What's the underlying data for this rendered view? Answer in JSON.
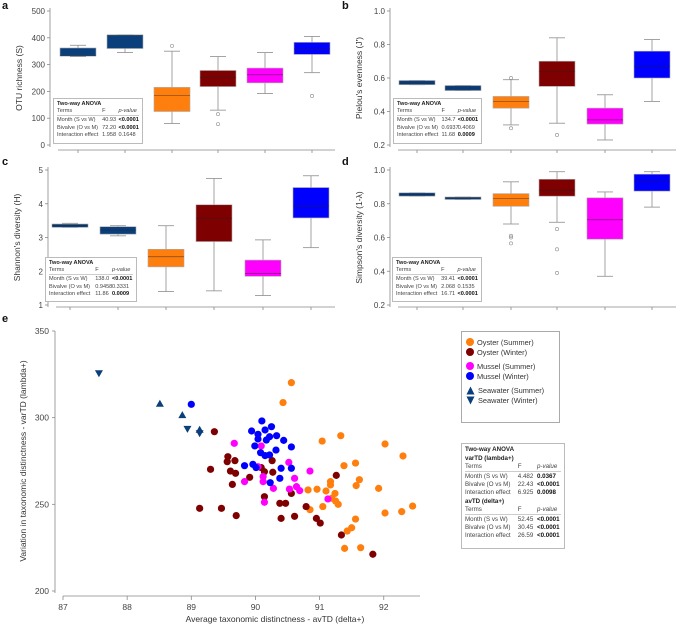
{
  "colors": {
    "seawater": "#0b3f7c",
    "oyster_summer": "#ff7f0e",
    "oyster_winter": "#7f0000",
    "mussel_summer": "#ff00ff",
    "mussel_winter": "#0000ff"
  },
  "chart_data": [
    {
      "panel": "a",
      "type": "box",
      "ylabel": "OTU richness (S)",
      "ylim": [
        0,
        500
      ],
      "yticks": [
        0,
        100,
        200,
        300,
        400,
        500
      ],
      "groups": [
        "Seawater (Summer)",
        "Seawater (Winter)",
        "Oyster (Summer)",
        "Oyster (Winter)",
        "Mussel (Summer)",
        "Mussel (Winter)"
      ],
      "boxes": [
        {
          "min": 330,
          "q1": 332,
          "median": 333,
          "q3": 362,
          "max": 372,
          "outliers": []
        },
        {
          "min": 345,
          "q1": 360,
          "median": 410,
          "q3": 410,
          "max": 410,
          "outliers": []
        },
        {
          "min": 80,
          "q1": 125,
          "median": 185,
          "q3": 215,
          "max": 350,
          "outliers": [
            370
          ]
        },
        {
          "min": 130,
          "q1": 218,
          "median": 252,
          "q3": 278,
          "max": 330,
          "outliers": [
            115,
            78
          ]
        },
        {
          "min": 192,
          "q1": 232,
          "median": 262,
          "q3": 287,
          "max": 345,
          "outliers": []
        },
        {
          "min": 270,
          "q1": 338,
          "median": 358,
          "q3": 383,
          "max": 405,
          "outliers": [
            183
          ]
        }
      ],
      "anova": {
        "title": "Two-way ANOVA",
        "header": [
          "Terms",
          "F",
          "p-value"
        ],
        "rows": [
          [
            "Month (S vs W)",
            "40.93",
            "<0.0001",
            true
          ],
          [
            "Bivalve (O vs M)",
            "72.20",
            "<0.0001",
            true
          ],
          [
            "Interaction effect",
            "1.958",
            "0.1648",
            false
          ]
        ]
      }
    },
    {
      "panel": "b",
      "type": "box",
      "ylabel": "Pielou's evenness (J')",
      "ylim": [
        0.2,
        1.0
      ],
      "yticks": [
        "0.2",
        "0.4",
        "0.6",
        "0.8",
        "1.0"
      ],
      "groups": [
        "Seawater (Summer)",
        "Seawater (Winter)",
        "Oyster (Summer)",
        "Oyster (Winter)",
        "Mussel (Summer)",
        "Mussel (Winter)"
      ],
      "boxes": [
        {
          "min": 0.56,
          "q1": 0.56,
          "median": 0.57,
          "q3": 0.585,
          "max": 0.585,
          "outliers": []
        },
        {
          "min": 0.525,
          "q1": 0.525,
          "median": 0.54,
          "q3": 0.555,
          "max": 0.555,
          "outliers": []
        },
        {
          "min": 0.32,
          "q1": 0.42,
          "median": 0.46,
          "q3": 0.49,
          "max": 0.59,
          "outliers": [
            0.3,
            0.6
          ]
        },
        {
          "min": 0.33,
          "q1": 0.55,
          "median": 0.64,
          "q3": 0.7,
          "max": 0.84,
          "outliers": [
            0.26
          ]
        },
        {
          "min": 0.23,
          "q1": 0.325,
          "median": 0.35,
          "q3": 0.42,
          "max": 0.5,
          "outliers": []
        },
        {
          "min": 0.46,
          "q1": 0.6,
          "median": 0.67,
          "q3": 0.76,
          "max": 0.83,
          "outliers": []
        }
      ],
      "anova": {
        "title": "Two-way ANOVA",
        "header": [
          "Terms",
          "F",
          "p-value"
        ],
        "rows": [
          [
            "Month (S vs W)",
            "134.7",
            "<0.0001",
            true
          ],
          [
            "Bivalve (O vs M)",
            "0.6937",
            "0.4069",
            false
          ],
          [
            "Interaction effect",
            "11.68",
            "0.0009",
            true
          ]
        ]
      }
    },
    {
      "panel": "c",
      "type": "box",
      "ylabel": "Shannon's diversity (H)",
      "ylim": [
        1,
        5
      ],
      "yticks": [
        "1",
        "2",
        "3",
        "4",
        "5"
      ],
      "groups": [
        "Seawater (Summer)",
        "Seawater (Winter)",
        "Oyster (Summer)",
        "Oyster (Winter)",
        "Mussel (Summer)",
        "Mussel (Winter)"
      ],
      "boxes": [
        {
          "min": 3.3,
          "q1": 3.3,
          "median": 3.36,
          "q3": 3.4,
          "max": 3.42,
          "outliers": []
        },
        {
          "min": 3.05,
          "q1": 3.1,
          "median": 3.22,
          "q3": 3.32,
          "max": 3.35,
          "outliers": []
        },
        {
          "min": 1.4,
          "q1": 2.13,
          "median": 2.43,
          "q3": 2.65,
          "max": 3.35,
          "outliers": []
        },
        {
          "min": 1.42,
          "q1": 2.88,
          "median": 3.57,
          "q3": 3.97,
          "max": 4.75,
          "outliers": []
        },
        {
          "min": 1.28,
          "q1": 1.85,
          "median": 1.93,
          "q3": 2.33,
          "max": 2.93,
          "outliers": []
        },
        {
          "min": 2.7,
          "q1": 3.58,
          "median": 3.93,
          "q3": 4.48,
          "max": 4.83,
          "outliers": []
        }
      ],
      "anova": {
        "title": "Two-way ANOVA",
        "header": [
          "Terms",
          "F",
          "p-value"
        ],
        "rows": [
          [
            "Month (S vs W)",
            "138.0",
            "<0.0001",
            true
          ],
          [
            "Bivalve (O vs M)",
            "0.9458",
            "0.3331",
            false
          ],
          [
            "Interaction effect",
            "11.86",
            "0.0009",
            true
          ]
        ]
      }
    },
    {
      "panel": "d",
      "type": "box",
      "ylabel": "Simpson's diversity (1-λ)",
      "ylim": [
        0.2,
        1.0
      ],
      "yticks": [
        "0.2",
        "0.4",
        "0.6",
        "0.8",
        "1.0"
      ],
      "groups": [
        "Seawater (Summer)",
        "Seawater (Winter)",
        "Oyster (Summer)",
        "Oyster (Winter)",
        "Mussel (Summer)",
        "Mussel (Winter)"
      ],
      "boxes": [
        {
          "min": 0.845,
          "q1": 0.845,
          "median": 0.855,
          "q3": 0.865,
          "max": 0.865,
          "outliers": []
        },
        {
          "min": 0.825,
          "q1": 0.827,
          "median": 0.835,
          "q3": 0.84,
          "max": 0.84,
          "outliers": []
        },
        {
          "min": 0.68,
          "q1": 0.785,
          "median": 0.83,
          "q3": 0.86,
          "max": 0.93,
          "outliers": [
            0.61,
            0.6,
            0.565
          ]
        },
        {
          "min": 0.69,
          "q1": 0.845,
          "median": 0.88,
          "q3": 0.945,
          "max": 0.99,
          "outliers": [
            0.65,
            0.53,
            0.39
          ]
        },
        {
          "min": 0.37,
          "q1": 0.59,
          "median": 0.705,
          "q3": 0.835,
          "max": 0.87,
          "outliers": []
        },
        {
          "min": 0.78,
          "q1": 0.875,
          "median": 0.93,
          "q3": 0.975,
          "max": 0.99,
          "outliers": []
        }
      ],
      "anova": {
        "title": "Two-way ANOVA",
        "header": [
          "Terms",
          "F",
          "p-value"
        ],
        "rows": [
          [
            "Month (S vs W)",
            "39.41",
            "<0.0001",
            true
          ],
          [
            "Bivalve (O vs M)",
            "2.068",
            "0.1535",
            false
          ],
          [
            "Interaction effect",
            "16.71",
            "<0.0001",
            true
          ]
        ]
      }
    },
    {
      "panel": "e",
      "type": "scatter",
      "xlabel": "Average taxonomic distinctness - avTD (delta+)",
      "ylabel": "Variation in taxonomic distinctness - varTD (lambda+)",
      "xlim": [
        87,
        92.5
      ],
      "ylim": [
        200,
        350
      ],
      "xticks": [
        "87",
        "88",
        "89",
        "90",
        "91",
        "92"
      ],
      "yticks": [
        "200",
        "250",
        "300",
        "350"
      ],
      "legend_position": "right",
      "series": [
        {
          "name": "Oyster (Summer)",
          "marker": "circle",
          "color_key": "oyster_summer",
          "points": [
            [
              90.56,
              320.2
            ],
            [
              90.43,
              308.7
            ],
            [
              91.33,
              289.6
            ],
            [
              91.04,
              286.5
            ],
            [
              92.02,
              284.8
            ],
            [
              92.3,
              277.9
            ],
            [
              91.56,
              273.8
            ],
            [
              91.38,
              272.3
            ],
            [
              91.62,
              264.2
            ],
            [
              91.57,
              260.8
            ],
            [
              91.17,
              263.1
            ],
            [
              91.17,
              261.2
            ],
            [
              90.82,
              258.3
            ],
            [
              90.96,
              258.7
            ],
            [
              91.1,
              257.7
            ],
            [
              91.24,
              256.3
            ],
            [
              91.19,
              253.5
            ],
            [
              91.25,
              251.9
            ],
            [
              91.29,
              250.0
            ],
            [
              91.05,
              248.7
            ],
            [
              90.85,
              246.9
            ],
            [
              91.92,
              259.2
            ],
            [
              92.02,
              245.0
            ],
            [
              92.28,
              245.8
            ],
            [
              92.45,
              249.0
            ],
            [
              91.56,
              241.5
            ],
            [
              91.5,
              236.5
            ],
            [
              91.43,
              234.6
            ],
            [
              91.39,
              224.6
            ],
            [
              91.64,
              225.0
            ]
          ]
        },
        {
          "name": "Oyster (Winter)",
          "marker": "circle",
          "color_key": "oyster_winter",
          "points": [
            [
              89.36,
              291.9
            ],
            [
              89.57,
              277.5
            ],
            [
              89.56,
              274.6
            ],
            [
              89.68,
              275.2
            ],
            [
              89.3,
              270.2
            ],
            [
              89.61,
              269.2
            ],
            [
              89.69,
              267.9
            ],
            [
              89.64,
              261.5
            ],
            [
              89.91,
              265.6
            ],
            [
              90.09,
              271.2
            ],
            [
              90.14,
              268.8
            ],
            [
              90.26,
              275.2
            ],
            [
              90.27,
              268.5
            ],
            [
              90.14,
              254.4
            ],
            [
              90.56,
              256.3
            ],
            [
              89.13,
              247.7
            ],
            [
              89.47,
              247.7
            ],
            [
              89.7,
              243.5
            ],
            [
              90.38,
              250.6
            ],
            [
              90.47,
              250.6
            ],
            [
              90.4,
              241.9
            ],
            [
              90.61,
              243.1
            ],
            [
              90.79,
              248.7
            ],
            [
              90.95,
              241.9
            ],
            [
              91.01,
              239.2
            ],
            [
              91.26,
              266.7
            ],
            [
              91.34,
              232.3
            ],
            [
              91.83,
              221.2
            ]
          ]
        },
        {
          "name": "Mussel (Summer)",
          "marker": "circle",
          "color_key": "mussel_summer",
          "points": [
            [
              89.67,
              285.2
            ],
            [
              90.09,
              283.7
            ],
            [
              90.52,
              274.2
            ],
            [
              90.85,
              269.2
            ],
            [
              90.61,
              265.0
            ],
            [
              90.12,
              266.0
            ],
            [
              90.12,
              263.1
            ],
            [
              89.83,
              263.1
            ],
            [
              90.28,
              259.2
            ],
            [
              90.53,
              258.8
            ],
            [
              90.64,
              260.2
            ],
            [
              90.69,
              257.9
            ],
            [
              90.04,
              271.7
            ],
            [
              90.14,
              251.2
            ],
            [
              91.13,
              253.1
            ]
          ]
        },
        {
          "name": "Mussel (Winter)",
          "marker": "circle",
          "color_key": "mussel_winter",
          "points": [
            [
              89.0,
              307.7
            ],
            [
              90.1,
              298.1
            ],
            [
              90.25,
              294.8
            ],
            [
              90.15,
              292.9
            ],
            [
              89.94,
              292.3
            ],
            [
              90.33,
              289.6
            ],
            [
              90.04,
              290.4
            ],
            [
              90.22,
              289.0
            ],
            [
              90.17,
              287.1
            ],
            [
              90.04,
              287.7
            ],
            [
              90.44,
              286.9
            ],
            [
              89.99,
              283.7
            ],
            [
              90.32,
              281.3
            ],
            [
              90.56,
              283.1
            ],
            [
              90.08,
              279.8
            ],
            [
              90.15,
              278.1
            ],
            [
              90.22,
              278.5
            ],
            [
              89.83,
              272.3
            ],
            [
              89.96,
              273.1
            ],
            [
              90.01,
              271.2
            ],
            [
              90.4,
              270.8
            ],
            [
              90.56,
              270.8
            ],
            [
              90.23,
              262.5
            ],
            [
              90.38,
              265.0
            ]
          ]
        },
        {
          "name": "Seawater (Summer)",
          "marker": "triangle-up",
          "color_key": "seawater",
          "points": [
            [
              88.51,
              308.0
            ],
            [
              88.86,
              301.5
            ],
            [
              89.13,
              293.0
            ]
          ]
        },
        {
          "name": "Seawater (Winter)",
          "marker": "triangle-down",
          "color_key": "seawater",
          "points": [
            [
              87.56,
              325.6
            ],
            [
              88.94,
              293.5
            ],
            [
              89.13,
              291.0
            ]
          ]
        }
      ],
      "anova": {
        "title": "Two-way ANOVA",
        "sections": [
          {
            "subtitle": "varTD (lambda+)",
            "header": [
              "Terms",
              "F",
              "p-value"
            ],
            "rows": [
              [
                "Month (S vs W)",
                "4.482",
                "0.0367",
                true
              ],
              [
                "Bivalve (O vs M)",
                "22.43",
                "<0.0001",
                true
              ],
              [
                "Interaction effect",
                "6.925",
                "0.0098",
                true
              ]
            ]
          },
          {
            "subtitle": "avTD (delta+)",
            "header": [
              "Terms",
              "F",
              "p-value"
            ],
            "rows": [
              [
                "Month (S vs W)",
                "52.45",
                "<0.0001",
                true
              ],
              [
                "Bivalve (O vs M)",
                "30.45",
                "<0.0001",
                true
              ],
              [
                "Interaction effect",
                "26.59",
                "<0.0001",
                true
              ]
            ]
          }
        ]
      }
    }
  ]
}
